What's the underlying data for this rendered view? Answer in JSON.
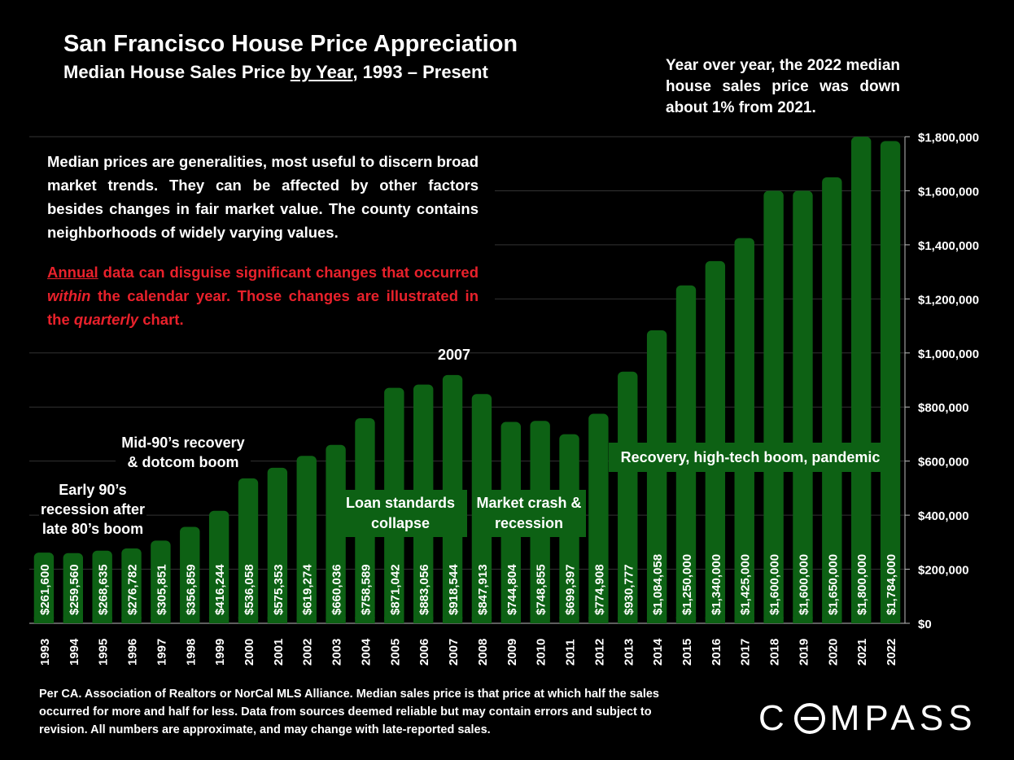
{
  "title": "San Francisco House Price Appreciation",
  "subtitle_parts": {
    "pre": "Median House Sales Price ",
    "underlined": "by Year",
    "post": ", 1993 – Present"
  },
  "yoy_note": "Year over year, the 2022 median house sales price was down about 1% from 2021.",
  "notes": {
    "p1": "Median prices are generalities, most useful to discern broad market trends. They can be affected by other factors besides changes in fair market value. The county contains neighborhoods of widely varying values.",
    "p2_parts": {
      "underlined": "Annual",
      "a": " data can disguise significant changes that occurred ",
      "italic1": "within",
      "b": " the calendar year. Those changes are illustrated in the ",
      "italic2": "quarterly",
      "c": " chart."
    }
  },
  "annotations": {
    "early90s": "Early 90’s recession after late 80’s boom",
    "mid90s": "Mid-90’s recovery & dotcom boom",
    "y2007": "2007",
    "loan": "Loan standards collapse",
    "crash": "Market crash & recession",
    "recovery": "Recovery, high-tech boom, pandemic"
  },
  "footer": "Per CA. Association of Realtors or NorCal MLS Alliance. Median sales price is that price at which half the sales occurred for more and half for less. Data from sources deemed reliable but may contain errors and subject to revision. All numbers are approximate, and may change with late-reported sales.",
  "logo": {
    "left": "C",
    "right": "MPASS"
  },
  "colors": {
    "bar": "#0d6114",
    "background": "#000000",
    "note_red": "#e8212b",
    "grid": "#333333"
  },
  "chart_data": {
    "type": "bar",
    "categories": [
      "1993",
      "1994",
      "1995",
      "1996",
      "1997",
      "1998",
      "1999",
      "2000",
      "2001",
      "2002",
      "2003",
      "2004",
      "2005",
      "2006",
      "2007",
      "2008",
      "2009",
      "2010",
      "2011",
      "2012",
      "2013",
      "2014",
      "2015",
      "2016",
      "2017",
      "2018",
      "2019",
      "2020",
      "2021",
      "2022"
    ],
    "values": [
      261600,
      259560,
      268635,
      276782,
      305851,
      356859,
      416244,
      536058,
      575353,
      619274,
      660036,
      758589,
      871042,
      883056,
      918544,
      847913,
      744804,
      748855,
      699397,
      774908,
      930777,
      1084058,
      1250000,
      1340000,
      1425000,
      1600000,
      1600000,
      1650000,
      1800000,
      1784000
    ],
    "data_labels": [
      "$261,600",
      "$259,560",
      "$268,635",
      "$276,782",
      "$305,851",
      "$356,859",
      "$416,244",
      "$536,058",
      "$575,353",
      "$619,274",
      "$660,036",
      "$758,589",
      "$871,042",
      "$883,056",
      "$918,544",
      "$847,913",
      "$744,804",
      "$748,855",
      "$699,397",
      "$774,908",
      "$930,777",
      "$1,084,058",
      "$1,250,000",
      "$1,340,000",
      "$1,425,000",
      "$1,600,000",
      "$1,600,000",
      "$1,650,000",
      "$1,800,000",
      "$1,784,000"
    ],
    "ylim": [
      0,
      1800000
    ],
    "y_ticks": [
      0,
      200000,
      400000,
      600000,
      800000,
      1000000,
      1200000,
      1400000,
      1600000,
      1800000
    ],
    "y_tick_labels": [
      "$0",
      "$200,000",
      "$400,000",
      "$600,000",
      "$800,000",
      "$1,000,000",
      "$1,200,000",
      "$1,400,000",
      "$1,600,000",
      "$1,800,000"
    ],
    "y_axis_side": "right",
    "grid": true
  }
}
